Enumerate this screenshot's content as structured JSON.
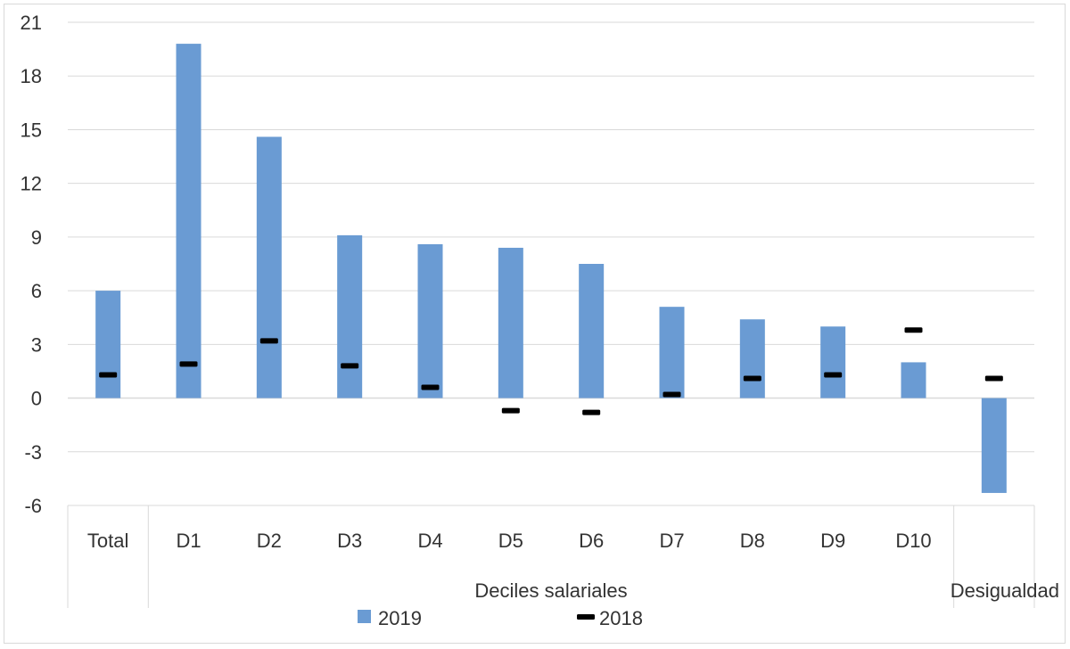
{
  "chart_data": {
    "type": "bar",
    "categories": [
      "Total",
      "D1",
      "D2",
      "D3",
      "D4",
      "D5",
      "D6",
      "D7",
      "D8",
      "D9",
      "D10",
      ""
    ],
    "category_groups": [
      {
        "label": "",
        "count": 1
      },
      {
        "label": "Deciles salariales",
        "count": 10
      },
      {
        "label": "Desigualdad",
        "count": 1
      }
    ],
    "series": [
      {
        "name": "2019",
        "type": "bar",
        "color": "#6a9bd3",
        "values": [
          6.0,
          19.8,
          14.6,
          9.1,
          8.6,
          8.4,
          7.5,
          5.1,
          4.4,
          4.0,
          2.0,
          -5.3
        ]
      },
      {
        "name": "2018",
        "type": "marker",
        "color": "#000000",
        "values": [
          1.3,
          1.9,
          3.2,
          1.8,
          0.6,
          -0.7,
          -0.8,
          0.2,
          1.1,
          1.3,
          3.8,
          1.1
        ]
      }
    ],
    "yticks": [
      21,
      18,
      15,
      12,
      9,
      6,
      3,
      0,
      -3,
      -6
    ],
    "ylim": [
      -6,
      21
    ],
    "grid": true,
    "legend_position": "bottom",
    "title": "",
    "xlabel": "",
    "ylabel": ""
  }
}
